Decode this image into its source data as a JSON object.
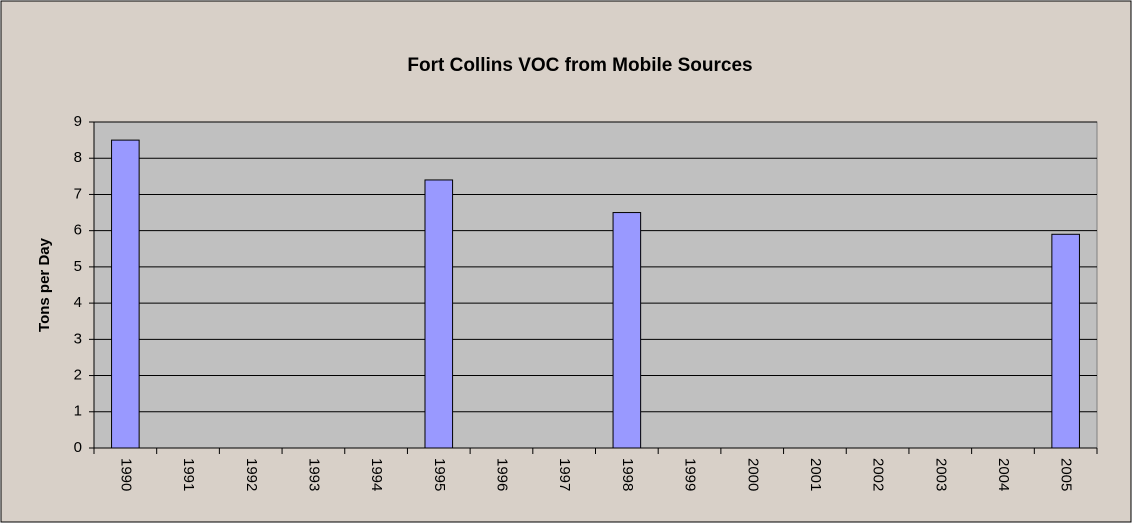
{
  "chart_data": {
    "type": "bar",
    "title": "Fort Collins VOC from Mobile Sources",
    "y_label": "Tons per Day",
    "categories": [
      "1990",
      "1991",
      "1992",
      "1993",
      "1994",
      "1995",
      "1996",
      "1997",
      "1998",
      "1999",
      "2000",
      "2001",
      "2002",
      "2003",
      "2004",
      "2005"
    ],
    "values": [
      8.5,
      null,
      null,
      null,
      null,
      7.4,
      null,
      null,
      6.5,
      null,
      null,
      null,
      null,
      null,
      null,
      5.9
    ],
    "color": "#9999ff",
    "ylim": [
      0,
      9
    ],
    "yticks": [
      0,
      1,
      2,
      3,
      4,
      5,
      6,
      7,
      8,
      9
    ],
    "grid": true
  }
}
